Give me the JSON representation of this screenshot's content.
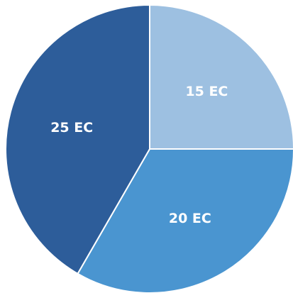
{
  "chart_data": {
    "type": "pie",
    "start": "12 o'clock",
    "direction": "clockwise",
    "slices": [
      {
        "label": "15 EC",
        "value": 15,
        "color": "#9dc0e1"
      },
      {
        "label": "20 EC",
        "value": 20,
        "color": "#4a95d0"
      },
      {
        "label": "25 EC",
        "value": 25,
        "color": "#2d5d9a"
      }
    ]
  }
}
